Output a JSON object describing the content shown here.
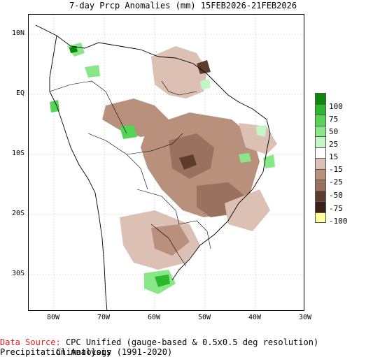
{
  "title": "7-day Prcp Anomalies (mm) 15FEB2026-21FEB2026",
  "y_ticks": [
    "10N",
    "EQ",
    "10S",
    "20S",
    "30S"
  ],
  "x_ticks": [
    "80W",
    "70W",
    "60W",
    "50W",
    "40W",
    "30W"
  ],
  "legend": {
    "labels": [
      "100",
      "75",
      "50",
      "25",
      "15",
      "-15",
      "-25",
      "-50",
      "-75",
      "-100"
    ],
    "colors": [
      "#0a8a0a",
      "#2eb82e",
      "#55d455",
      "#88e888",
      "#c4f5c4",
      "#ffffff",
      "#dcc0b4",
      "#b8907c",
      "#9a705e",
      "#5e3c2c",
      "#3a2016",
      "#ffff9c"
    ]
  },
  "footer": {
    "source_label": "Data Source:",
    "source_text": "CPC Unified (gauge-based & 0.5x0.5 deg resolution) Precipitation Analysis",
    "climatology": "Climatology (1991-2020)"
  }
}
